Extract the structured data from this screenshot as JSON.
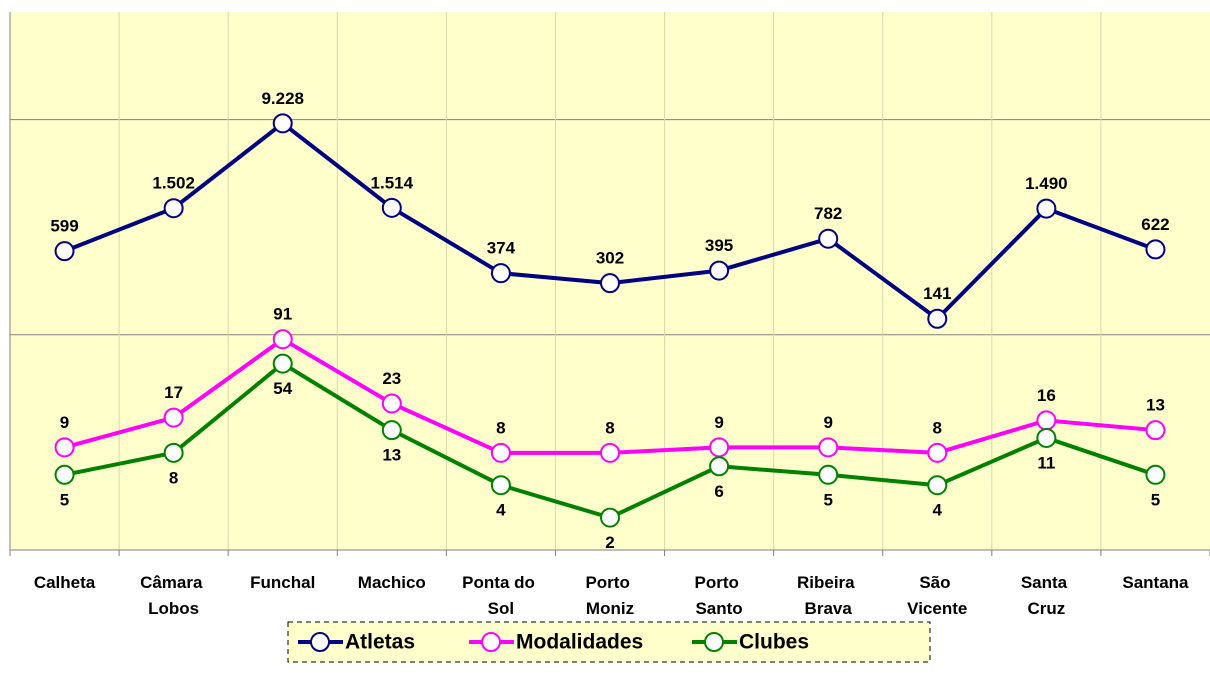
{
  "chart_data": {
    "type": "line",
    "categories": [
      "Calheta",
      "Câmara Lobos",
      "Funchal",
      "Machico",
      "Ponta do Sol",
      "Porto Moniz",
      "Porto Santo",
      "Ribeira Brava",
      "São Vicente",
      "Santa Cruz",
      "Santana"
    ],
    "series": [
      {
        "name": "Atletas",
        "color": "#000080",
        "values": [
          599,
          1502,
          9228,
          1514,
          374,
          302,
          395,
          782,
          141,
          1490,
          622
        ],
        "value_labels": [
          "599",
          "1.502",
          "9.228",
          "1.514",
          "374",
          "302",
          "395",
          "782",
          "141",
          "1.490",
          "622"
        ]
      },
      {
        "name": "Modalidades",
        "color": "#ff00ff",
        "values": [
          9,
          17,
          91,
          23,
          8,
          8,
          9,
          9,
          8,
          16,
          13
        ]
      },
      {
        "name": "Clubes",
        "color": "#008000",
        "values": [
          5,
          8,
          54,
          13,
          4,
          2,
          6,
          5,
          4,
          11,
          5
        ]
      }
    ],
    "log_scale": true,
    "ylim": [
      1,
      100000
    ],
    "yticks": [
      1,
      100,
      10000
    ],
    "grid": true,
    "legend": "bottom"
  }
}
